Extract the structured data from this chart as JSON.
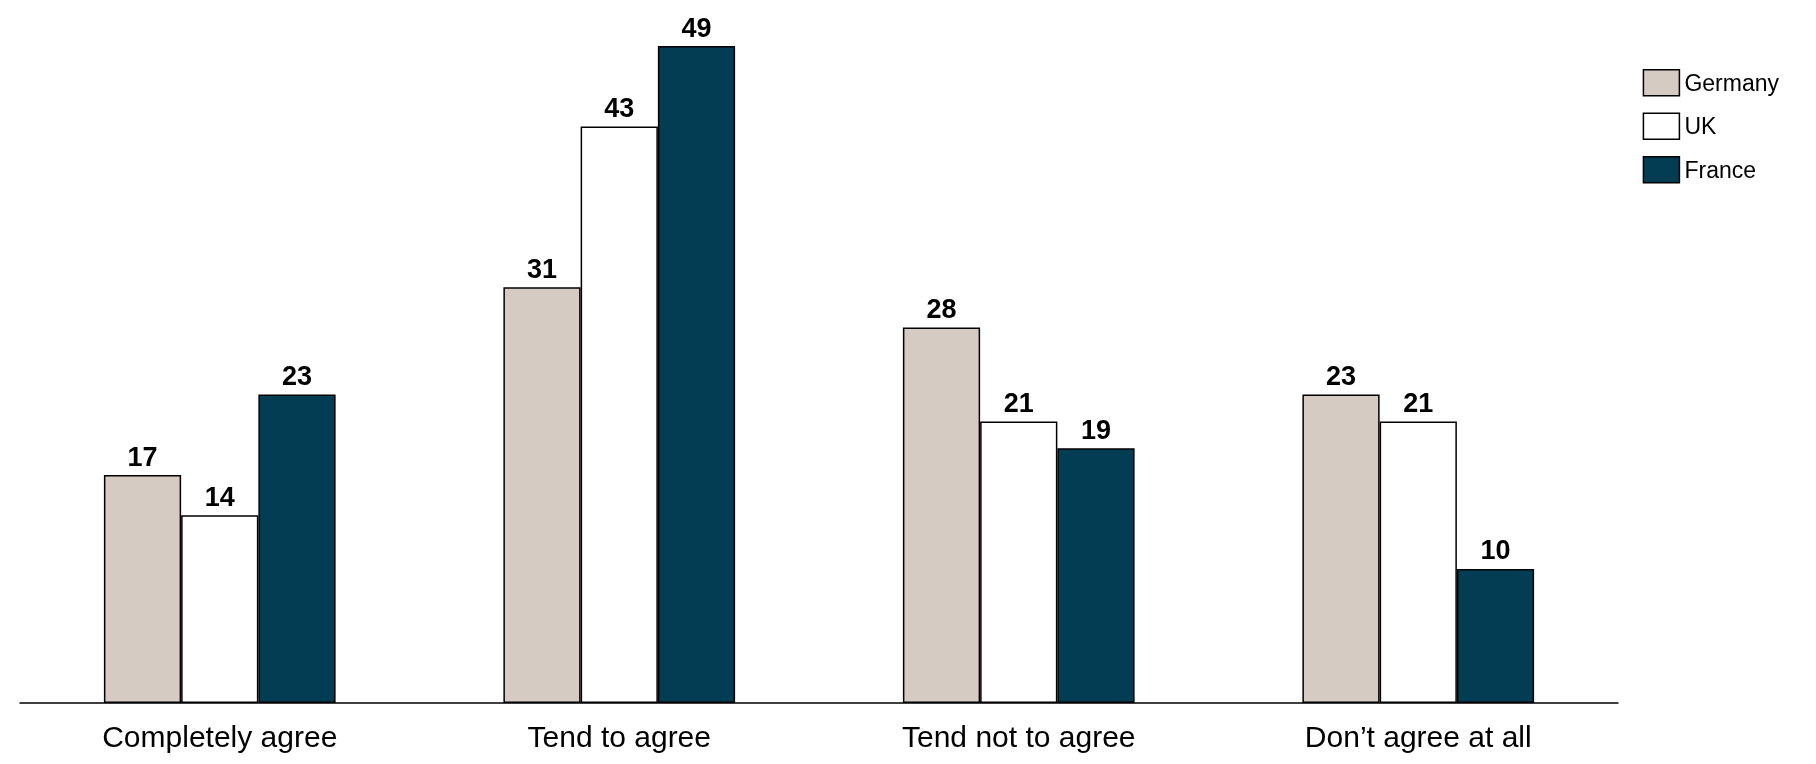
{
  "chart_data": {
    "type": "bar",
    "categories": [
      "Completely agree",
      "Tend to agree",
      "Tend not to agree",
      "Don’t agree at all"
    ],
    "series": [
      {
        "name": "Germany",
        "color": "#d5cbc2",
        "values": [
          17,
          31,
          28,
          23
        ]
      },
      {
        "name": "UK",
        "color": "#ffffff",
        "values": [
          14,
          43,
          21,
          21
        ]
      },
      {
        "name": "France",
        "color": "#023d54",
        "values": [
          23,
          49,
          19,
          10
        ]
      }
    ],
    "data_labels": true,
    "legend": "top right"
  }
}
